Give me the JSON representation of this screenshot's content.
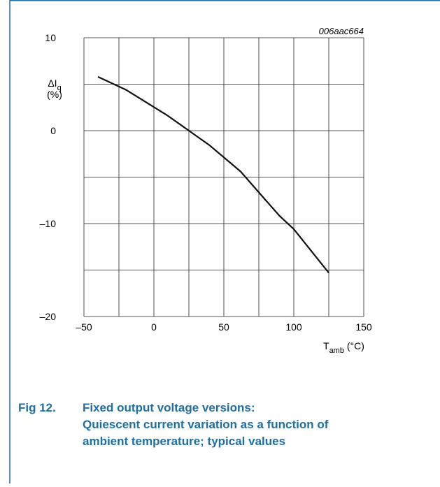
{
  "chart_data": {
    "type": "line",
    "code": "006aac664",
    "y_label": {
      "main": "ΔI",
      "sub": "q",
      "unit": "(%)"
    },
    "x_label": {
      "main": "T",
      "sub": "amb",
      "unit": " (°C)"
    },
    "x": [
      -40,
      -20,
      10,
      25,
      40,
      62,
      80,
      90,
      100,
      125
    ],
    "series": [
      {
        "color": "#111111",
        "values": [
          5.8,
          4.4,
          1.6,
          0,
          -1.6,
          -4.4,
          -7.5,
          -9.2,
          -10.6,
          -15.3
        ]
      }
    ],
    "xlim": [
      -50,
      150
    ],
    "ylim": [
      -20,
      10
    ],
    "xticks": [
      {
        "value": -50,
        "label": "–50"
      },
      0,
      50,
      100,
      150
    ],
    "yticks": [
      10,
      0,
      {
        "value": -10,
        "label": "–10"
      },
      {
        "value": -20,
        "label": "–20"
      }
    ],
    "x_minor_grid": [
      -25,
      25,
      75,
      125
    ],
    "y_minor_grid": [
      5,
      -5,
      -15
    ],
    "grid": true,
    "caption": {
      "number": "Fig 12.",
      "lines": [
        "Fixed output voltage versions:",
        "Quiescent current variation as a function of",
        "ambient temperature; typical values"
      ]
    }
  }
}
